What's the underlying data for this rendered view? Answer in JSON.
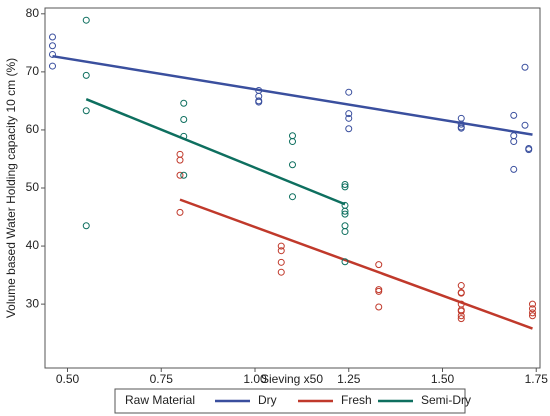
{
  "chart_data": {
    "type": "scatter",
    "x_label": "Sieving x50",
    "y_label": "Volume based Water Holding capacity 10 cm (%)",
    "legend_title": "Raw Material",
    "legend_position": "bottom",
    "grid": false,
    "xlim": [
      0.44,
      1.76
    ],
    "ylim": [
      19,
      81
    ],
    "xticks": [
      {
        "value": 0.5,
        "label": "0.50"
      },
      0.75,
      {
        "value": 1,
        "label": "1.00"
      },
      1.25,
      {
        "value": 1.5,
        "label": "1.50"
      },
      1.75
    ],
    "yticks": [
      30,
      40,
      50,
      60,
      70,
      80
    ],
    "series": [
      {
        "name": "Dry",
        "color": "#3a4f9e",
        "x": [
          0.46,
          0.46,
          0.46,
          0.46,
          1.01,
          1.01,
          1.01,
          1.01,
          1.25,
          1.25,
          1.25,
          1.25,
          1.55,
          1.55,
          1.55,
          1.55,
          1.69,
          1.69,
          1.69,
          1.69,
          1.72,
          1.72,
          1.73,
          1.73
        ],
        "y": [
          76,
          74.5,
          73,
          71,
          66.8,
          65.8,
          65,
          64.8,
          66.5,
          62.8,
          62,
          60.2,
          62,
          61,
          60.5,
          60.3,
          62.5,
          59,
          58,
          53.2,
          70.8,
          60.8,
          56.8,
          56.6
        ],
        "fit": {
          "x": [
            0.46,
            1.74
          ],
          "y": [
            72.7,
            59.2
          ]
        }
      },
      {
        "name": "Fresh",
        "color": "#c0392b",
        "x": [
          0.8,
          0.8,
          0.8,
          0.8,
          1.07,
          1.07,
          1.07,
          1.07,
          1.33,
          1.33,
          1.33,
          1.33,
          1.55,
          1.55,
          1.55,
          1.55,
          1.55,
          1.55,
          1.55,
          1.55,
          1.74,
          1.74,
          1.74,
          1.74
        ],
        "y": [
          55.8,
          54.8,
          52.2,
          45.8,
          40,
          39.2,
          37.2,
          35.5,
          36.8,
          32.5,
          32.2,
          29.5,
          33.2,
          32,
          31.9,
          30,
          29,
          28.8,
          28,
          27.5,
          30,
          29.2,
          28.5,
          28
        ],
        "fit": {
          "x": [
            0.8,
            1.74
          ],
          "y": [
            48,
            25.8
          ]
        }
      },
      {
        "name": "Semi-Dry",
        "color": "#0e6f5f",
        "x": [
          0.55,
          0.55,
          0.55,
          0.55,
          0.81,
          0.81,
          0.81,
          0.81,
          1.1,
          1.1,
          1.1,
          1.1,
          1.24,
          1.24,
          1.24,
          1.24,
          1.24,
          1.24,
          1.24,
          1.24
        ],
        "y": [
          78.9,
          69.4,
          63.3,
          43.5,
          64.6,
          61.8,
          58.9,
          52.2,
          59,
          58,
          54,
          48.5,
          50.6,
          50.2,
          47,
          46,
          45.5,
          43.5,
          42.5,
          37.3
        ],
        "fit": {
          "x": [
            0.55,
            1.24
          ],
          "y": [
            65.3,
            47.2
          ]
        }
      }
    ]
  }
}
